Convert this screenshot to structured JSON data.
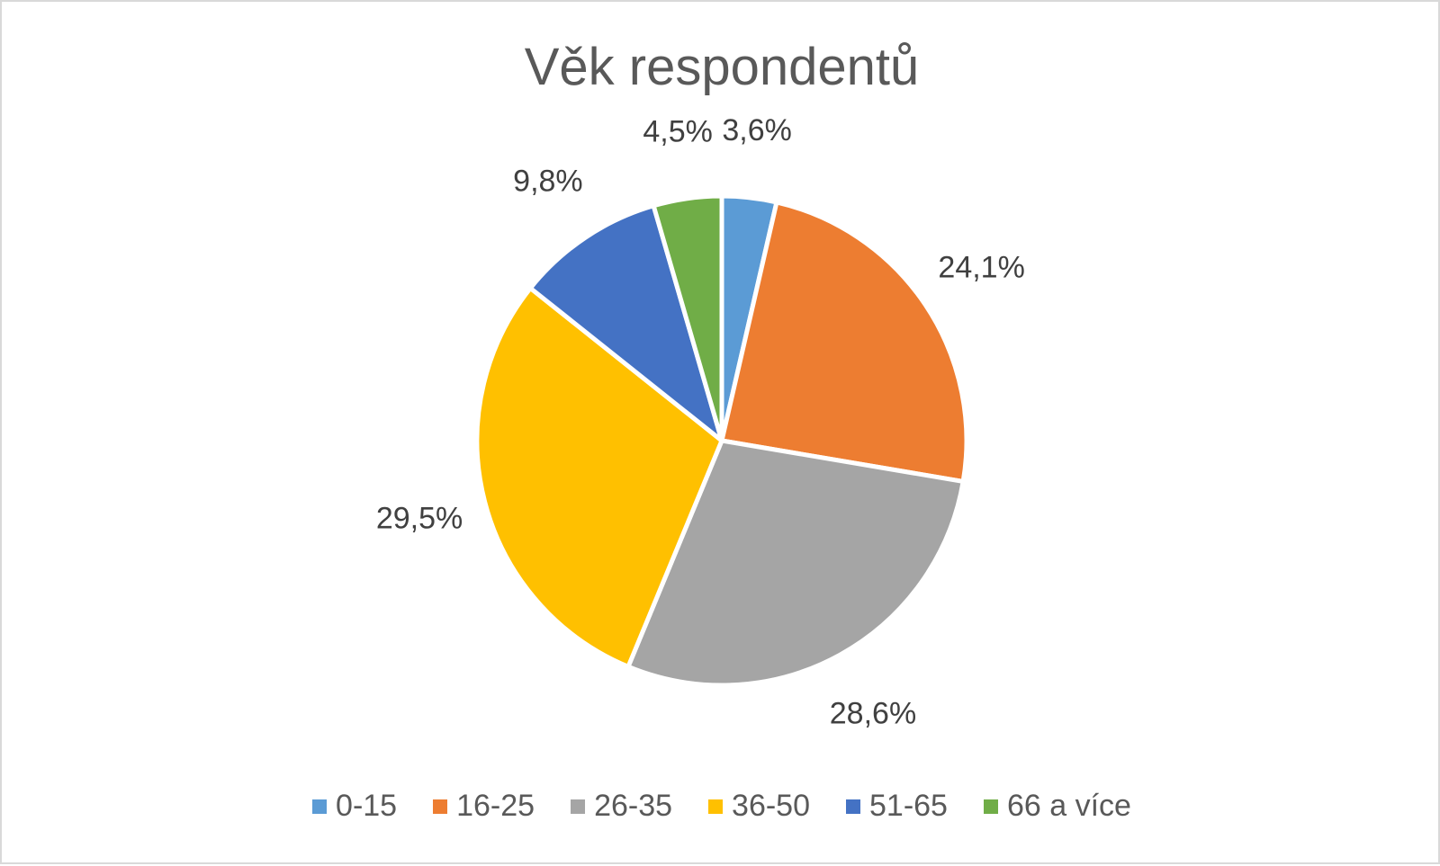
{
  "chart_data": {
    "type": "pie",
    "title": "Věk respondentů",
    "categories": [
      "0-15",
      "16-25",
      "26-35",
      "36-50",
      "51-65",
      "66 a více"
    ],
    "values": [
      3.6,
      24.1,
      28.6,
      29.5,
      9.8,
      4.5
    ],
    "data_labels": [
      "3,6%",
      "24,1%",
      "28,6%",
      "29,5%",
      "9,8%",
      "4,5%"
    ],
    "colors": [
      "#5b9bd5",
      "#ed7d31",
      "#a5a5a5",
      "#ffc000",
      "#4472c4",
      "#70ad47"
    ],
    "legend_position": "bottom",
    "start_angle": "12 o'clock",
    "direction": "clockwise"
  }
}
